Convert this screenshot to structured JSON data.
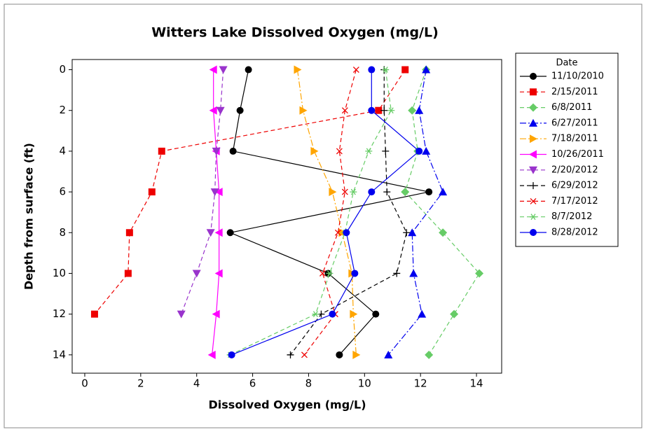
{
  "chart_data": {
    "type": "line",
    "title": "Witters Lake Dissolved Oxygen (mg/L)",
    "x_label": "Dissolved Oxygen (mg/L)",
    "y_label": "Depth from surface (ft)",
    "legend_title": "Date",
    "legend": "right",
    "y_inverted": true,
    "y": [
      0,
      2,
      4,
      6,
      8,
      10,
      12,
      14
    ],
    "xlim": [
      -0.45,
      14.9
    ],
    "xticks": [
      0,
      2,
      4,
      6,
      8,
      10,
      12,
      14
    ],
    "ylim": [
      -0.5,
      14.9
    ],
    "yticks": [
      0,
      2,
      4,
      6,
      8,
      10,
      12,
      14
    ],
    "series": [
      {
        "name": "11/10/2010",
        "color": "#000000",
        "line_style": "solid",
        "marker": "circle",
        "values": [
          5.85,
          5.55,
          5.3,
          12.3,
          5.2,
          8.7,
          10.4,
          9.1
        ]
      },
      {
        "name": "2/15/2011",
        "color": "#ee0000",
        "line_style": "dashed",
        "marker": "square",
        "values": [
          11.45,
          10.5,
          2.75,
          2.4,
          1.6,
          1.55,
          0.35,
          null
        ]
      },
      {
        "name": "6/8/2011",
        "color": "#66cc66",
        "line_style": "dashed",
        "marker": "diamond",
        "values": [
          12.2,
          11.7,
          11.9,
          11.45,
          12.8,
          14.1,
          13.2,
          12.3
        ]
      },
      {
        "name": "6/27/2011",
        "color": "#0000ee",
        "line_style": "dashdot",
        "marker": "triangle-up",
        "values": [
          12.2,
          11.95,
          12.2,
          12.8,
          11.7,
          11.75,
          12.05,
          10.85
        ]
      },
      {
        "name": "7/18/2011",
        "color": "#ffa500",
        "line_style": "dashdot",
        "marker": "triangle-right",
        "values": [
          7.6,
          7.8,
          8.2,
          8.85,
          9.2,
          9.55,
          9.6,
          9.7
        ]
      },
      {
        "name": "10/26/2011",
        "color": "#ff00ff",
        "line_style": "solid",
        "marker": "triangle-left",
        "values": [
          4.6,
          4.6,
          4.7,
          4.8,
          4.8,
          4.8,
          4.7,
          4.55
        ]
      },
      {
        "name": "2/20/2012",
        "color": "#9933cc",
        "line_style": "dashed",
        "marker": "triangle-down",
        "values": [
          4.95,
          4.85,
          4.7,
          4.65,
          4.5,
          4.0,
          3.45,
          null
        ]
      },
      {
        "name": "6/29/2012",
        "color": "#000000",
        "line_style": "dashed",
        "marker": "plus",
        "values": [
          10.7,
          10.7,
          10.75,
          10.8,
          11.5,
          11.15,
          8.45,
          7.35
        ]
      },
      {
        "name": "7/17/2012",
        "color": "#ee0000",
        "line_style": "dashed",
        "marker": "x",
        "values": [
          9.7,
          9.3,
          9.1,
          9.3,
          9.05,
          8.5,
          8.95,
          7.85
        ]
      },
      {
        "name": "8/7/2012",
        "color": "#66cc66",
        "line_style": "dashed",
        "marker": "asterisk",
        "values": [
          10.75,
          10.95,
          10.15,
          9.6,
          9.3,
          8.75,
          8.25,
          5.2
        ]
      },
      {
        "name": "8/28/2012",
        "color": "#0000ee",
        "line_style": "solid",
        "marker": "circle",
        "values": [
          10.25,
          10.25,
          11.95,
          10.25,
          9.35,
          9.65,
          8.85,
          5.25
        ]
      }
    ]
  }
}
